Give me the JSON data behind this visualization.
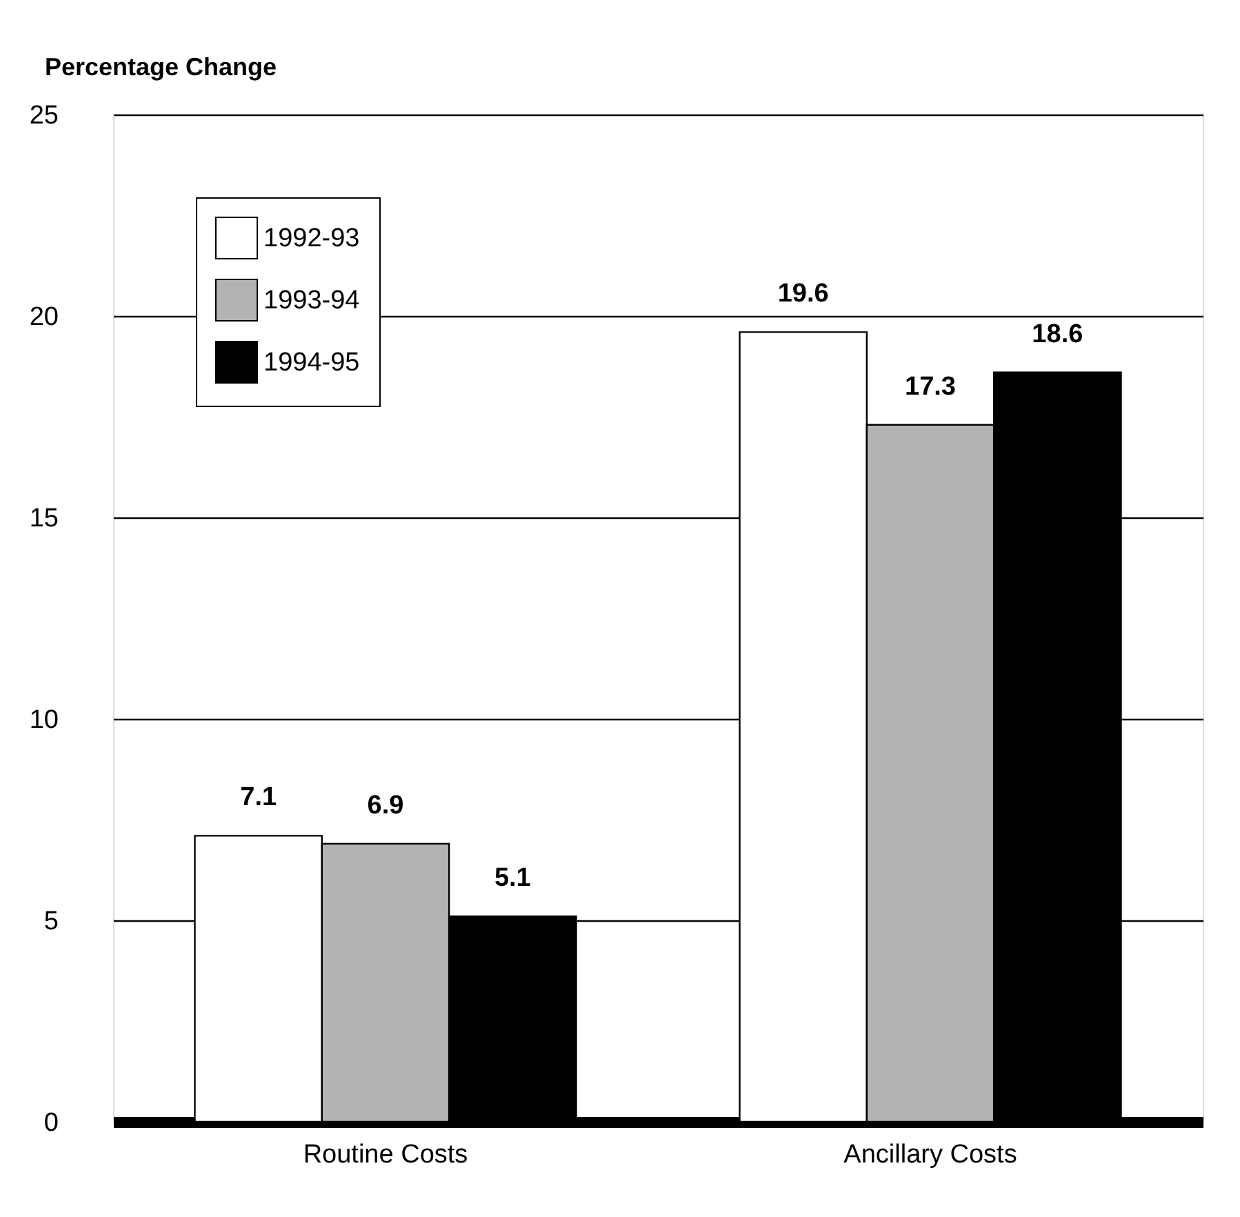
{
  "chart_data": {
    "type": "bar",
    "ylabel": "Percentage Change",
    "categories": [
      "Routine Costs",
      "Ancillary Costs"
    ],
    "series": [
      {
        "name": "1992-93",
        "color": "#ffffff",
        "values": [
          7.1,
          19.6
        ]
      },
      {
        "name": "1993-94",
        "color": "#b3b3b3",
        "values": [
          6.9,
          17.3
        ]
      },
      {
        "name": "1994-95",
        "color": "#000000",
        "values": [
          5.1,
          18.6
        ]
      }
    ],
    "ylim": [
      0,
      25
    ],
    "yticks": [
      0,
      5,
      10,
      15,
      20,
      25
    ],
    "grid": "y",
    "legend": "top left",
    "data_labels": true
  }
}
